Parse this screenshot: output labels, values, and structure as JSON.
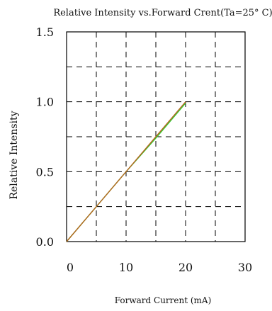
{
  "chart_data": {
    "type": "line",
    "title": "Relative Intensity vs.Forward Crent(Ta=25° C)",
    "xlabel": "Forward Current (mA)",
    "ylabel": "Relative Intensity",
    "xlim": [
      0,
      30
    ],
    "ylim": [
      0,
      1.5
    ],
    "grid": true,
    "grid_style": "dashed",
    "xticks": [
      0,
      10,
      20,
      30
    ],
    "xtick_labels": [
      "0",
      "10",
      "20",
      "30"
    ],
    "yticks": [
      0,
      0.5,
      1.0,
      1.5
    ],
    "ytick_labels": [
      "0.0",
      "0.5",
      "1.0",
      "1.5"
    ],
    "series": [
      {
        "color": "#33cc33",
        "x": [
          0,
          5,
          10,
          15,
          20
        ],
        "y": [
          0,
          0.25,
          0.5,
          0.74,
          0.99
        ]
      },
      {
        "color": "#b5651d",
        "x": [
          0,
          5,
          10,
          15,
          20
        ],
        "y": [
          0,
          0.25,
          0.5,
          0.75,
          1.0
        ]
      }
    ]
  }
}
